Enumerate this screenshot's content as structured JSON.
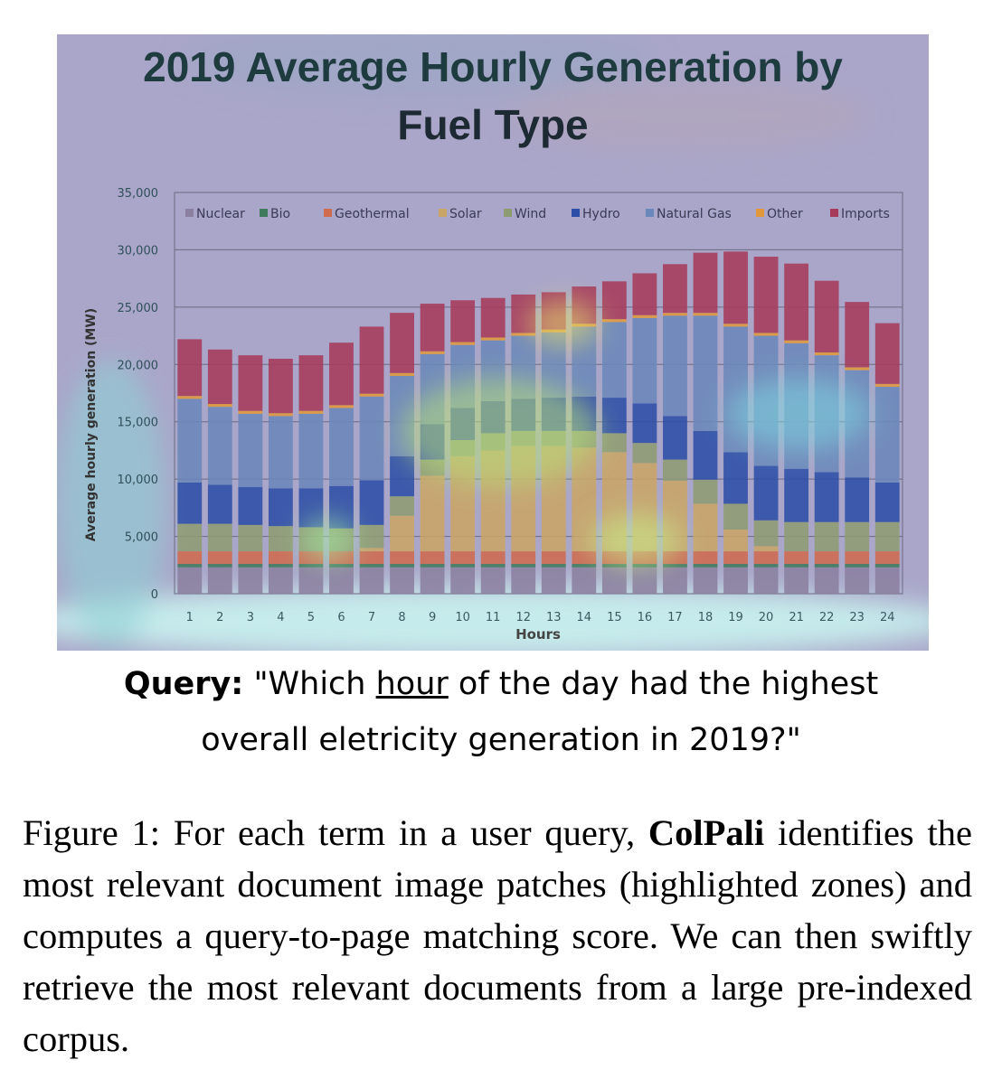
{
  "query": {
    "label": "Query:",
    "text_before": " \"Which ",
    "highlighted_term": "hour",
    "text_after_line1": " of the day had the highest",
    "line2": "overall eletricity generation in 2019?\""
  },
  "caption": {
    "prefix": "Figure 1: For each term in a user query, ",
    "model_name": "ColPali",
    "text": " identifies the most relevant document image patches (highlighted zones) and computes a query-to-page matching score.  We can then swiftly retrieve the most relevant documents from a large pre-indexed corpus."
  },
  "chart_data": {
    "type": "bar",
    "stacked": true,
    "title_lines": [
      "2019 Average Hourly Generation by",
      "Fuel Type"
    ],
    "xlabel": "Hours",
    "ylabel": "Average hourly generation (MW)",
    "ylim": [
      0,
      35000
    ],
    "yticks": [
      "0",
      "5,000",
      "10,000",
      "15,000",
      "20,000",
      "25,000",
      "30,000",
      "35,000"
    ],
    "grid": true,
    "legend_position": "top",
    "categories": [
      "1",
      "2",
      "3",
      "4",
      "5",
      "6",
      "7",
      "8",
      "9",
      "10",
      "11",
      "12",
      "13",
      "14",
      "15",
      "16",
      "17",
      "18",
      "19",
      "20",
      "21",
      "22",
      "23",
      "24"
    ],
    "series": [
      {
        "name": "Nuclear",
        "color": "#8b809f",
        "values": [
          2300,
          2300,
          2300,
          2300,
          2300,
          2300,
          2300,
          2300,
          2300,
          2300,
          2300,
          2300,
          2300,
          2300,
          2300,
          2300,
          2300,
          2300,
          2300,
          2300,
          2300,
          2300,
          2300,
          2300
        ]
      },
      {
        "name": "Bio",
        "color": "#3f7a5c",
        "values": [
          300,
          300,
          300,
          300,
          300,
          300,
          300,
          300,
          300,
          300,
          300,
          300,
          300,
          300,
          300,
          300,
          300,
          300,
          300,
          300,
          300,
          300,
          300,
          300
        ]
      },
      {
        "name": "Geothermal",
        "color": "#cf6b4e",
        "values": [
          1100,
          1100,
          1100,
          1100,
          1100,
          1100,
          1100,
          1100,
          1100,
          1100,
          1100,
          1100,
          1100,
          1100,
          1100,
          1100,
          1100,
          1100,
          1100,
          1100,
          1100,
          1100,
          1100,
          1100
        ]
      },
      {
        "name": "Solar",
        "color": "#c9a567",
        "values": [
          0,
          0,
          0,
          0,
          0,
          0,
          300,
          3100,
          6600,
          8300,
          8800,
          9200,
          9200,
          9050,
          8650,
          7700,
          6150,
          4150,
          1900,
          450,
          0,
          0,
          0,
          0
        ]
      },
      {
        "name": "Wind",
        "color": "#8e9c72",
        "values": [
          2400,
          2400,
          2300,
          2200,
          2100,
          2000,
          2000,
          1700,
          1400,
          1400,
          1500,
          1300,
          1300,
          1450,
          1650,
          1750,
          1850,
          2100,
          2250,
          2250,
          2550,
          2550,
          2550,
          2550
        ]
      },
      {
        "name": "Hydro",
        "color": "#2d4ea6",
        "values": [
          3600,
          3400,
          3300,
          3300,
          3400,
          3700,
          3900,
          3500,
          3100,
          2800,
          2800,
          2800,
          2900,
          3000,
          3100,
          3450,
          3800,
          4250,
          4500,
          4750,
          4650,
          4350,
          3900,
          3450
        ]
      },
      {
        "name": "Natural Gas",
        "color": "#6b88ba",
        "values": [
          7300,
          6800,
          6400,
          6300,
          6500,
          6800,
          7300,
          7000,
          6100,
          5500,
          5300,
          5500,
          5700,
          6100,
          6600,
          7450,
          8750,
          10050,
          10950,
          11350,
          10950,
          10200,
          9350,
          8350
        ]
      },
      {
        "name": "Other",
        "color": "#e0983a",
        "values": [
          250,
          250,
          250,
          250,
          250,
          250,
          250,
          250,
          250,
          250,
          250,
          250,
          250,
          250,
          250,
          250,
          250,
          250,
          250,
          250,
          250,
          250,
          250,
          250
        ]
      },
      {
        "name": "Imports",
        "color": "#a63b5b",
        "values": [
          4950,
          4750,
          4850,
          4750,
          4850,
          5450,
          5850,
          5250,
          4150,
          3650,
          3450,
          3350,
          3250,
          3250,
          3300,
          3650,
          4250,
          5250,
          6300,
          6650,
          6700,
          6250,
          5700,
          5300
        ]
      }
    ]
  }
}
